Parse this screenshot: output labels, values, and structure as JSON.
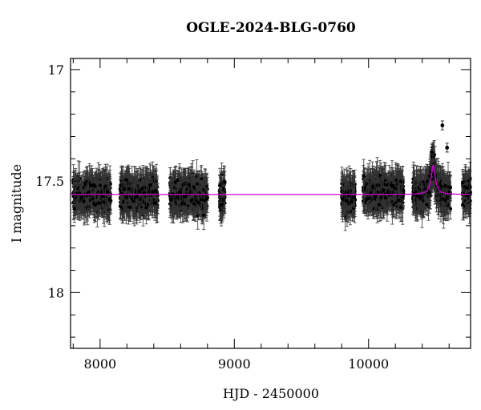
{
  "chart_data": {
    "type": "scatter",
    "title": "OGLE-2024-BLG-0760",
    "xlabel": "HJD - 2450000",
    "ylabel": "I magnitude",
    "xlim": [
      7780,
      10760
    ],
    "ylim": [
      18.25,
      16.95
    ],
    "y_inverted": true,
    "xticks_major": [
      8000,
      9000,
      10000
    ],
    "xticks_major_labels": [
      "8000",
      "9000",
      "10000"
    ],
    "yticks_major": [
      17,
      17.5,
      18
    ],
    "yticks_major_labels": [
      "17",
      "17.5",
      "18"
    ],
    "grid": false,
    "legend": "none",
    "colors": {
      "data": "#000000",
      "model": "#cc00cc",
      "errorbar": "#333333"
    },
    "baseline_mag": 17.56,
    "observing_seasons_hjd": [
      [
        7800,
        8080
      ],
      [
        8150,
        8430
      ],
      [
        8520,
        8800
      ],
      [
        8890,
        8930
      ],
      [
        9800,
        9900
      ],
      [
        9960,
        10260
      ],
      [
        10330,
        10610
      ],
      [
        10700,
        10760
      ]
    ],
    "season_mean_mag": [
      17.56,
      17.56,
      17.56,
      17.57,
      17.57,
      17.55,
      17.56,
      17.55
    ],
    "typical_errorbar_mag": 0.06,
    "scatter_sd_mag": 0.045,
    "event": {
      "peak_hjd": 10482,
      "peak_mag_model": 17.43,
      "brightest_points": [
        {
          "x": 10550,
          "y": 17.25
        },
        {
          "x": 10585,
          "y": 17.35
        },
        {
          "x": 10470,
          "y": 17.37
        }
      ]
    },
    "series": [
      {
        "kind": "points",
        "description_key": "photometry"
      },
      {
        "kind": "model-line"
      }
    ]
  }
}
